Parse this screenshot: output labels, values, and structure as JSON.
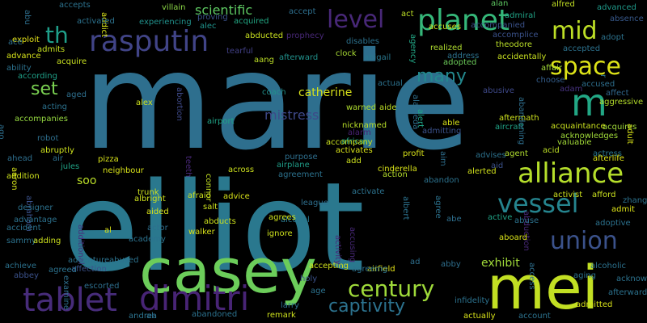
{
  "words": [
    {
      "text": "marie",
      "color": "#2e6f8e"
    },
    {
      "text": "elliot",
      "color": "#2a788e"
    },
    {
      "text": "casey",
      "color": "#6ccd5a"
    },
    {
      "text": "mei",
      "color": "#c2df23"
    },
    {
      "text": "rasputin",
      "color": "#414487"
    },
    {
      "text": "dimitri",
      "color": "#482475"
    },
    {
      "text": "tablet",
      "color": "#472c7a"
    },
    {
      "text": "alliance",
      "color": "#b5de2b"
    },
    {
      "text": "vessel",
      "color": "#25848e"
    },
    {
      "text": "union",
      "color": "#3b528b"
    },
    {
      "text": "century",
      "color": "#9fda3a"
    },
    {
      "text": "captivity",
      "color": "#2c728e"
    },
    {
      "text": "planet",
      "color": "#35b779"
    },
    {
      "text": "level",
      "color": "#482878"
    },
    {
      "text": "mid",
      "color": "#bddf26"
    },
    {
      "text": "space",
      "color": "#dde318"
    },
    {
      "text": "m",
      "color": "#22a785"
    },
    {
      "text": "th",
      "color": "#1f9e89"
    },
    {
      "text": "set",
      "color": "#7ad151"
    },
    {
      "text": "many",
      "color": "#23898e"
    },
    {
      "text": "catherine",
      "color": "#d8e219"
    },
    {
      "text": "mistress",
      "color": "#3e4989"
    },
    {
      "text": "scientific",
      "color": "#5ec962"
    },
    {
      "text": "exhibit",
      "color": "#a0da39"
    },
    {
      "text": "soo",
      "color": "#bade28"
    },
    {
      "text": "us",
      "color": "#2a788e"
    },
    {
      "text": "nicknamed",
      "color": "#b8de29"
    },
    {
      "text": "accepting",
      "color": "#d2e21b"
    },
    {
      "text": "airfield",
      "color": "#e5e419"
    },
    {
      "text": "villain",
      "color": "#8bd646"
    },
    {
      "text": "addict",
      "color": "#d8e219"
    },
    {
      "text": "experiencing",
      "color": "#21918c"
    },
    {
      "text": "alec",
      "color": "#1f948c"
    },
    {
      "text": "proving",
      "color": "#3b528b"
    },
    {
      "text": "acquired",
      "color": "#22a884"
    },
    {
      "text": "abducted",
      "color": "#c8e020"
    },
    {
      "text": "prophecy",
      "color": "#482878"
    },
    {
      "text": "accept",
      "color": "#2e6f8e"
    },
    {
      "text": "act",
      "color": "#bddf26"
    },
    {
      "text": "alan",
      "color": "#5ec962"
    },
    {
      "text": "admiral",
      "color": "#20a386"
    },
    {
      "text": "alfred",
      "color": "#c2df23"
    },
    {
      "text": "advanced",
      "color": "#1f9a8a"
    },
    {
      "text": "accuses",
      "color": "#cae11f"
    },
    {
      "text": "accompanied",
      "color": "#3b528b"
    },
    {
      "text": "absence",
      "color": "#38598c"
    },
    {
      "text": "accomplice",
      "color": "#3b528b"
    },
    {
      "text": "adopt",
      "color": "#2c728e"
    },
    {
      "text": "theodore",
      "color": "#bade28"
    },
    {
      "text": "accepted",
      "color": "#2c728e"
    },
    {
      "text": "admits",
      "color": "#c5e021"
    },
    {
      "text": "exploit",
      "color": "#e5e419"
    },
    {
      "text": "advance",
      "color": "#d5e21a"
    },
    {
      "text": "acquire",
      "color": "#c8e020"
    },
    {
      "text": "ability",
      "color": "#2c728e"
    },
    {
      "text": "according",
      "color": "#1fa088"
    },
    {
      "text": "aang",
      "color": "#bddf26"
    },
    {
      "text": "afterward",
      "color": "#21918c"
    },
    {
      "text": "tearful",
      "color": "#424086"
    },
    {
      "text": "clock",
      "color": "#a8db34"
    },
    {
      "text": "disables",
      "color": "#2c728e"
    },
    {
      "text": "abigail",
      "color": "#2a788e"
    },
    {
      "text": "agency",
      "color": "#22a785"
    },
    {
      "text": "realized",
      "color": "#b0dd2f"
    },
    {
      "text": "address",
      "color": "#2c728e"
    },
    {
      "text": "adopted",
      "color": "#6ccd5a"
    },
    {
      "text": "accidentally",
      "color": "#c8e020"
    },
    {
      "text": "affair",
      "color": "#a2da37"
    },
    {
      "text": "choose",
      "color": "#355f8d"
    },
    {
      "text": "adam",
      "color": "#46327e"
    },
    {
      "text": "accused",
      "color": "#2e6f8e"
    },
    {
      "text": "affect",
      "color": "#31688e"
    },
    {
      "text": "aggressive",
      "color": "#b5de2b"
    },
    {
      "text": "alameda",
      "color": "#2e6f8e"
    },
    {
      "text": "acting",
      "color": "#2c728e"
    },
    {
      "text": "aged",
      "color": "#2e6f8e"
    },
    {
      "text": "abortion",
      "color": "#3e4a89"
    },
    {
      "text": "coach",
      "color": "#21918c"
    },
    {
      "text": "warned",
      "color": "#b0dd2f"
    },
    {
      "text": "aide",
      "color": "#bddf26"
    },
    {
      "text": "alert",
      "color": "#20a386"
    },
    {
      "text": "able",
      "color": "#d8e219"
    },
    {
      "text": "abusive",
      "color": "#3e4989"
    },
    {
      "text": "accompanies",
      "color": "#95d840"
    },
    {
      "text": "alex",
      "color": "#cde11d"
    },
    {
      "text": "airport",
      "color": "#20a386"
    },
    {
      "text": "alarm",
      "color": "#482173"
    },
    {
      "text": "admitting",
      "color": "#3b528b"
    },
    {
      "text": "aircraft",
      "color": "#20a386"
    },
    {
      "text": "aftermath",
      "color": "#cde11d"
    },
    {
      "text": "acquires",
      "color": "#a0da39"
    },
    {
      "text": "abandoning",
      "color": "#2e6f8e"
    },
    {
      "text": "acquaintance",
      "color": "#cae11f"
    },
    {
      "text": "acknowledges",
      "color": "#a0da39"
    },
    {
      "text": "ago",
      "color": "#2e6f8e"
    },
    {
      "text": "robot",
      "color": "#2e6f8e"
    },
    {
      "text": "african",
      "color": "#1fa188"
    },
    {
      "text": "accompany",
      "color": "#cae11f"
    },
    {
      "text": "activates",
      "color": "#d8e219"
    },
    {
      "text": "valuable",
      "color": "#a2da37"
    },
    {
      "text": "actress",
      "color": "#2a788e"
    },
    {
      "text": "adult",
      "color": "#d8e219"
    },
    {
      "text": "abruptly",
      "color": "#cde11d"
    },
    {
      "text": "purpose",
      "color": "#2e6f8e"
    },
    {
      "text": "profit",
      "color": "#d8e219"
    },
    {
      "text": "aim",
      "color": "#2e6f8e"
    },
    {
      "text": "advises",
      "color": "#2c728e"
    },
    {
      "text": "agent",
      "color": "#b0dd2f"
    },
    {
      "text": "acid",
      "color": "#bddf26"
    },
    {
      "text": "afterlife",
      "color": "#dde318"
    },
    {
      "text": "ahead",
      "color": "#2e6f8e"
    },
    {
      "text": "air",
      "color": "#2e6f8e"
    },
    {
      "text": "pizza",
      "color": "#d8e219"
    },
    {
      "text": "teeth",
      "color": "#482878"
    },
    {
      "text": "airplane",
      "color": "#1f9e89"
    },
    {
      "text": "add",
      "color": "#cde11d"
    },
    {
      "text": "cinderella",
      "color": "#d8e219"
    },
    {
      "text": "aid",
      "color": "#3b528b"
    },
    {
      "text": "aaron",
      "color": "#d5e21a"
    },
    {
      "text": "jules",
      "color": "#20a386"
    },
    {
      "text": "neighbour",
      "color": "#d8e219"
    },
    {
      "text": "agreement",
      "color": "#2c728e"
    },
    {
      "text": "action",
      "color": "#b5de2b"
    },
    {
      "text": "alerted",
      "color": "#d2e21b"
    },
    {
      "text": "addition",
      "color": "#cde11d"
    },
    {
      "text": "across",
      "color": "#cde11d"
    },
    {
      "text": "abandon",
      "color": "#2c728e"
    },
    {
      "text": "afford",
      "color": "#cae11f"
    },
    {
      "text": "activist",
      "color": "#cde11d"
    },
    {
      "text": "trunk",
      "color": "#cde11d"
    },
    {
      "text": "albright",
      "color": "#cde11d"
    },
    {
      "text": "connor",
      "color": "#c2df23"
    },
    {
      "text": "advice",
      "color": "#d8e219"
    },
    {
      "text": "activate",
      "color": "#2c728e"
    },
    {
      "text": "zhang",
      "color": "#2c728e"
    },
    {
      "text": "abraham",
      "color": "#3b528b"
    },
    {
      "text": "afraid",
      "color": "#cde11d"
    },
    {
      "text": "league",
      "color": "#2e6f8e"
    },
    {
      "text": "agree",
      "color": "#2c728e"
    },
    {
      "text": "albert",
      "color": "#2c728e"
    },
    {
      "text": "admit",
      "color": "#dde318"
    },
    {
      "text": "designer",
      "color": "#2c728e"
    },
    {
      "text": "aided",
      "color": "#d8e219"
    },
    {
      "text": "salt",
      "color": "#cde11d"
    },
    {
      "text": "abduction",
      "color": "#482878"
    },
    {
      "text": "advantage",
      "color": "#2c728e"
    },
    {
      "text": "abducts",
      "color": "#cde11d"
    },
    {
      "text": "alcohol",
      "color": "#2a788e"
    },
    {
      "text": "abe",
      "color": "#2e6f8e"
    },
    {
      "text": "active",
      "color": "#20a386"
    },
    {
      "text": "abuse",
      "color": "#2c728e"
    },
    {
      "text": "adoptive",
      "color": "#2c728e"
    },
    {
      "text": "accident",
      "color": "#2c728e"
    },
    {
      "text": "additional",
      "color": "#46327e"
    },
    {
      "text": "al",
      "color": "#d8e219"
    },
    {
      "text": "actor",
      "color": "#2e6f8e"
    },
    {
      "text": "agrees",
      "color": "#cde11d"
    },
    {
      "text": "accusing",
      "color": "#482878"
    },
    {
      "text": "sammy",
      "color": "#2c728e"
    },
    {
      "text": "adding",
      "color": "#cde11d"
    },
    {
      "text": "walker",
      "color": "#d8e219"
    },
    {
      "text": "academy",
      "color": "#2c728e"
    },
    {
      "text": "ignore",
      "color": "#cde11d"
    },
    {
      "text": "activity",
      "color": "#482878"
    },
    {
      "text": "aboard",
      "color": "#d8e219"
    },
    {
      "text": "adventure",
      "color": "#2c728e"
    },
    {
      "text": "abused",
      "color": "#2c728e"
    },
    {
      "text": "achieve",
      "color": "#2c728e"
    },
    {
      "text": "affection",
      "color": "#3b528b"
    },
    {
      "text": "abbey",
      "color": "#3b528b"
    },
    {
      "text": "agreed",
      "color": "#2c728e"
    },
    {
      "text": "examine",
      "color": "#2e6f8e"
    },
    {
      "text": "escorted",
      "color": "#2e6f8e"
    },
    {
      "text": "holy",
      "color": "#3b528b"
    },
    {
      "text": "agreeing",
      "color": "#2c728e"
    },
    {
      "text": "ad",
      "color": "#2e6f8e"
    },
    {
      "text": "abby",
      "color": "#2e6f8e"
    },
    {
      "text": "access",
      "color": "#2e6f8e"
    },
    {
      "text": "aging",
      "color": "#2c728e"
    },
    {
      "text": "alcoholic",
      "color": "#2c728e"
    },
    {
      "text": "acknowledge",
      "color": "#2c728e"
    },
    {
      "text": "age",
      "color": "#2c728e"
    },
    {
      "text": "infidelity",
      "color": "#2c728e"
    },
    {
      "text": "larry",
      "color": "#2e6f8e"
    },
    {
      "text": "afterwards",
      "color": "#2c728e"
    },
    {
      "text": "admitted",
      "color": "#d8e219"
    },
    {
      "text": "andrea",
      "color": "#2c728e"
    },
    {
      "text": "ah",
      "color": "#2e6f8e"
    },
    {
      "text": "abandoned",
      "color": "#2c728e"
    },
    {
      "text": "remark",
      "color": "#cde11d"
    },
    {
      "text": "actually",
      "color": "#d8e219"
    },
    {
      "text": "account",
      "color": "#2c728e"
    },
    {
      "text": "ace",
      "color": "#2e6f8e"
    },
    {
      "text": "abu",
      "color": "#2e6f8e"
    },
    {
      "text": "accepts",
      "color": "#2c728e"
    },
    {
      "text": "activated",
      "color": "#2c728e"
    },
    {
      "text": "actual",
      "color": "#2c728e"
    },
    {
      "text": "r",
      "color": "#2c728e"
    },
    {
      "text": "ali",
      "color": "#cde11d"
    }
  ]
}
